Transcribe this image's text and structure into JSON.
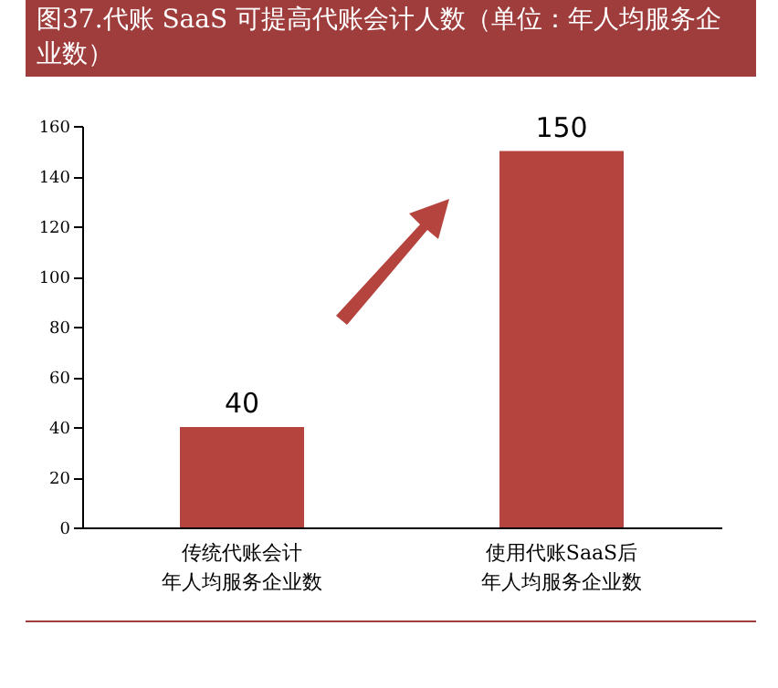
{
  "chart_data": {
    "type": "bar",
    "title": "图37.代账 SaaS 可提高代账会计人数（单位：年人均服务企业数）",
    "categories": [
      "传统代账会计年人均服务企业数",
      "使用代账SaaS后年人均服务企业数"
    ],
    "values": [
      40,
      150
    ],
    "color": "#b5443f",
    "ylim": [
      0,
      160
    ],
    "yticks": [
      0,
      20,
      40,
      60,
      80,
      100,
      120,
      140,
      160
    ],
    "grid": false,
    "data_labels": true
  }
}
